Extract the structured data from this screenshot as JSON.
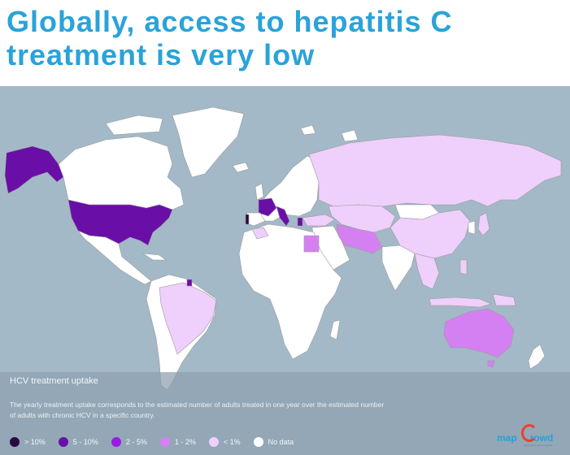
{
  "headline": {
    "line1": "Globally, access to hepatitis C",
    "line2": "treatment is very low"
  },
  "legend": {
    "title": "HCV treatment uptake",
    "description_line1": "The yearly treatment uptake corresponds to the estimated number of adults treated in one year over the estimated number",
    "description_line2": "of adults with chronic HCV in a specific country.",
    "categories": [
      {
        "label": "> 10%",
        "color": "#2a0a3c"
      },
      {
        "label": "5 - 10%",
        "color": "#6a0ea8"
      },
      {
        "label": "2 - 5%",
        "color": "#9a1be6"
      },
      {
        "label": "1 - 2%",
        "color": "#d580f2"
      },
      {
        "label": "< 1%",
        "color": "#efcffb"
      },
      {
        "label": "No data",
        "color": "#ffffff"
      }
    ]
  },
  "logo": {
    "text": "map",
    "text2": "rowd",
    "tagline": "mapping the world together"
  },
  "colors": {
    "ocean": "#a3b9c8",
    "headline": "#2aa3d9",
    "land_no_data": "#ffffff"
  }
}
